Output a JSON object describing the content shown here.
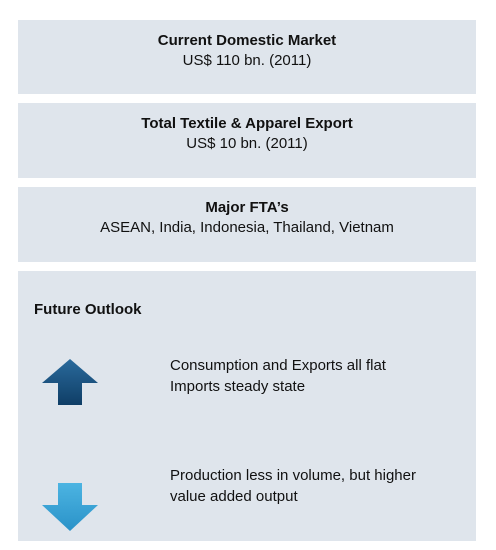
{
  "sections": [
    {
      "title": "Current Domestic Market",
      "value": "US$ 110 bn. (2011)"
    },
    {
      "title": "Total Textile & Apparel Export",
      "value": "US$ 10 bn. (2011)"
    },
    {
      "title": "Major FTA’s",
      "value": "ASEAN, India, Indonesia, Thailand, Vietnam"
    }
  ],
  "outlook": {
    "title": "Future Outlook",
    "items": [
      {
        "lines": [
          "Consumption and Exports all flat",
          "Imports steady state"
        ]
      },
      {
        "lines": [
          "Production less in volume, but higher",
          "value added output"
        ]
      }
    ]
  }
}
